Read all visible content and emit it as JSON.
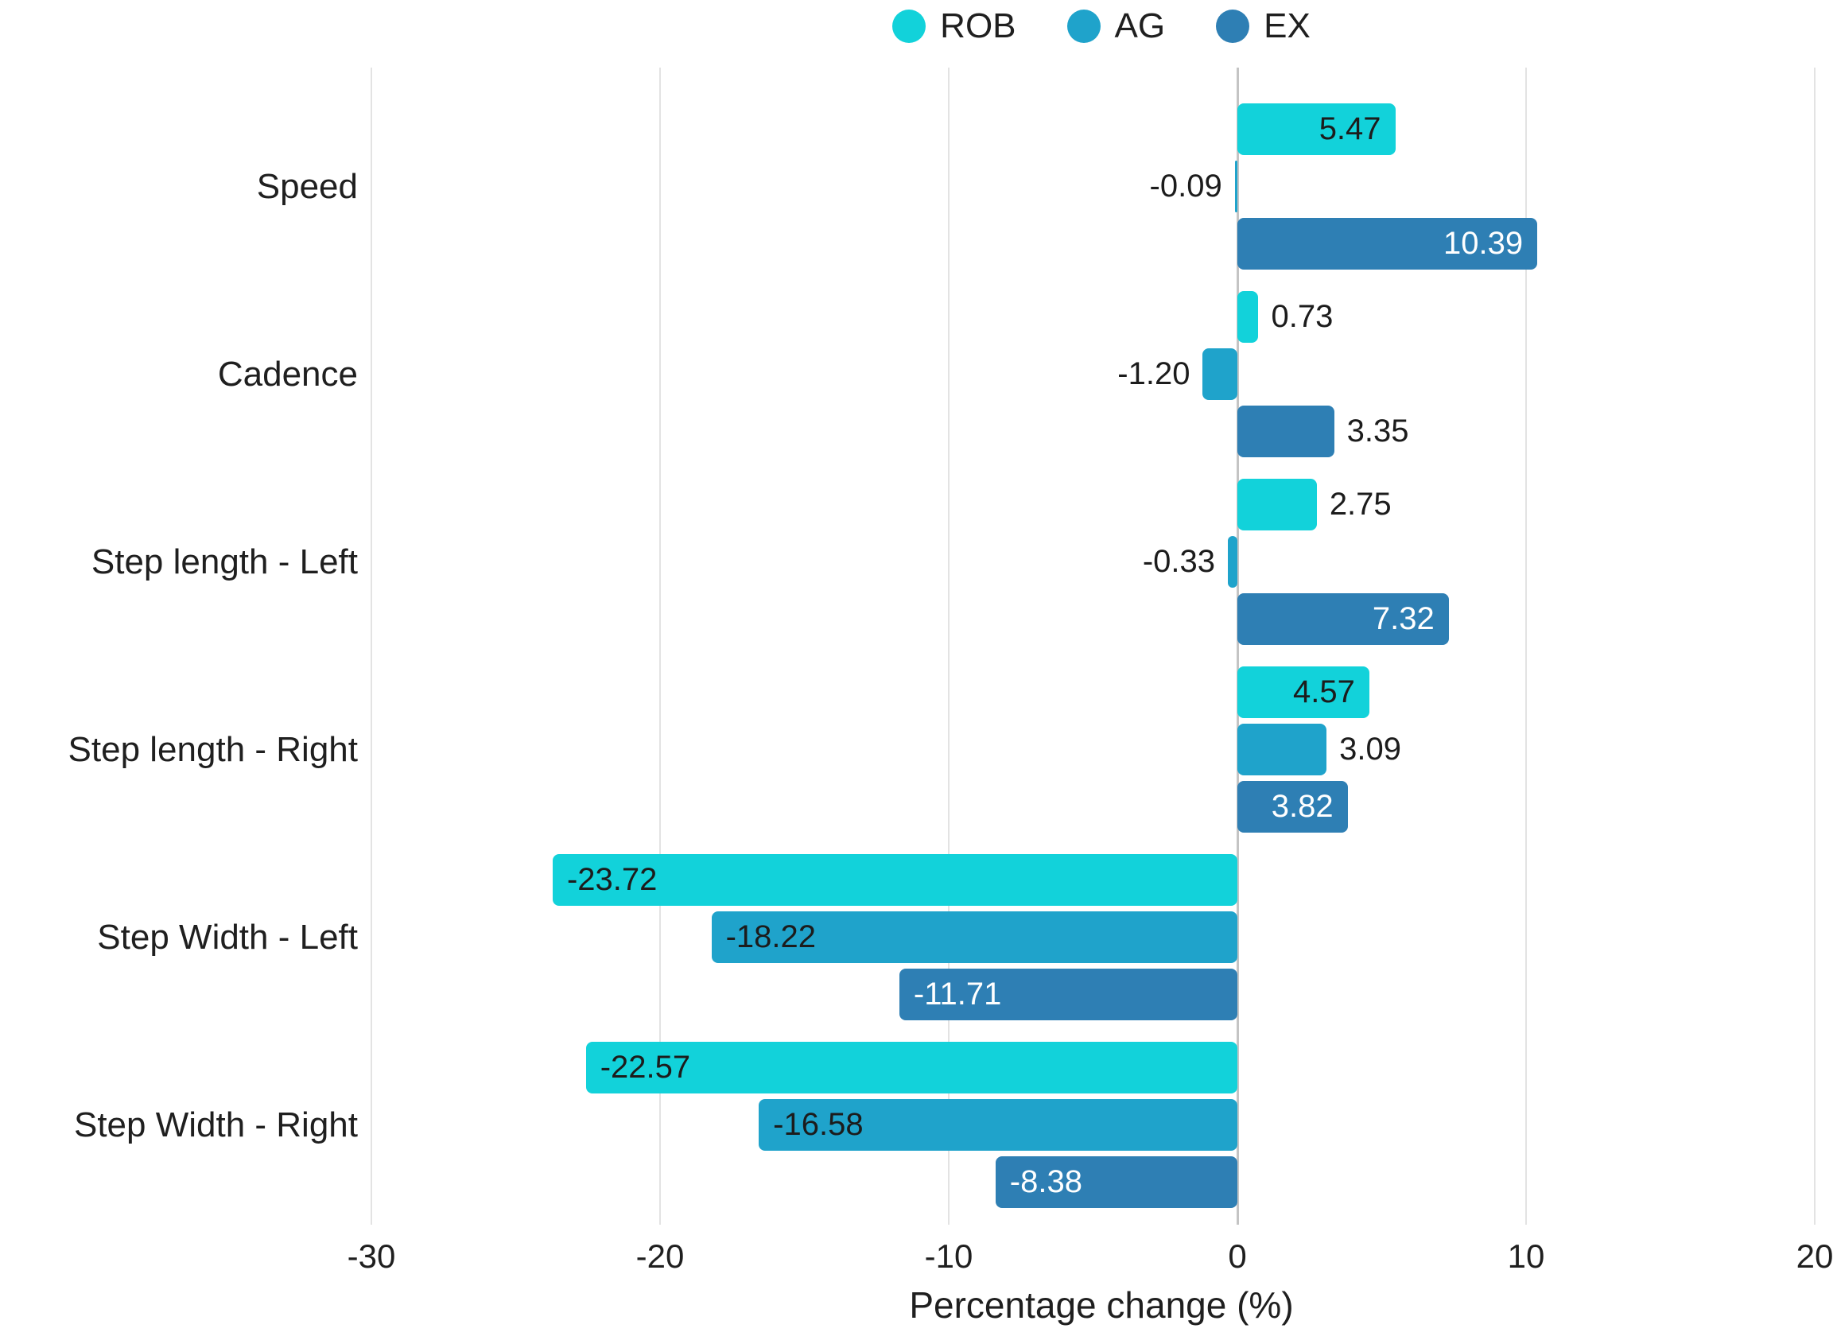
{
  "chart_data": {
    "type": "bar",
    "orientation": "horizontal",
    "title": "",
    "xlabel": "Percentage change (%)",
    "ylabel": "",
    "categories": [
      "Speed",
      "Cadence",
      "Step length - Left",
      "Step length - Right",
      "Step Width - Left",
      "Step Width - Right"
    ],
    "x_ticks": {
      "values": [
        -30,
        -20,
        -10,
        0,
        10,
        20
      ],
      "labels": [
        "-30",
        "-20",
        "-10",
        "0",
        "10",
        "20"
      ]
    },
    "xlim": [
      -30.2,
      20.8
    ],
    "grid": "vertical",
    "legend": {
      "position": "top-center",
      "items": [
        {
          "label": "ROB",
          "color": "#12d2da"
        },
        {
          "label": "AG",
          "color": "#1fa3cb"
        },
        {
          "label": "EX",
          "color": "#2e7fb4"
        }
      ]
    },
    "series": [
      {
        "name": "ROB",
        "color": "#12d2da",
        "inside_label_color": "#1c1c1c",
        "values": [
          5.47,
          0.73,
          2.75,
          4.57,
          -23.72,
          -22.57
        ],
        "labels": [
          "5.47",
          "0.73",
          "2.75",
          "4.57",
          "-23.72",
          "-22.57"
        ],
        "label_placement": [
          "inside",
          "outside",
          "outside",
          "inside",
          "inside",
          "inside"
        ]
      },
      {
        "name": "AG",
        "color": "#1fa3cb",
        "inside_label_color": "#1c1c1c",
        "values": [
          -0.09,
          -1.2,
          -0.33,
          3.09,
          -18.22,
          -16.58
        ],
        "labels": [
          "-0.09",
          "-1.20",
          "-0.33",
          "3.09",
          "-18.22",
          "-16.58"
        ],
        "label_placement": [
          "outside",
          "outside",
          "outside",
          "outside",
          "inside",
          "inside"
        ]
      },
      {
        "name": "EX",
        "color": "#2e7fb4",
        "inside_label_color": "#ffffff",
        "values": [
          10.39,
          3.35,
          7.32,
          3.82,
          -11.71,
          -8.38
        ],
        "labels": [
          "10.39",
          "3.35",
          "7.32",
          "3.82",
          "-11.71",
          "-8.38"
        ],
        "label_placement": [
          "inside",
          "outside",
          "inside",
          "inside",
          "inside",
          "inside"
        ]
      }
    ],
    "value_label_outside_color": "#1c1c1c"
  },
  "styles": {
    "background": "#ffffff",
    "gridline_color": "#e3e3e3",
    "zero_line_color": "#c4c4c4",
    "text_color": "#1f1f1f"
  }
}
